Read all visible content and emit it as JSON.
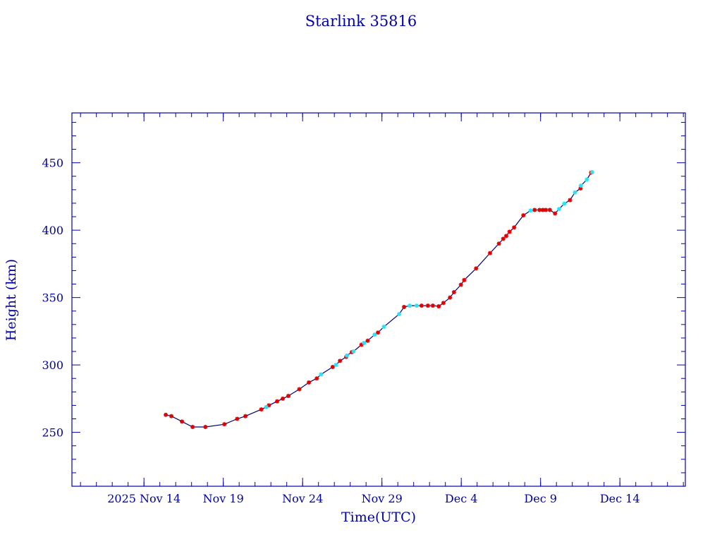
{
  "chart_data": {
    "type": "line",
    "title": "Starlink 35816",
    "xlabel": "Time(UTC)",
    "ylabel": "Height (km)",
    "xlim": [
      "2025-11-09T11:00",
      "2025-12-18T03:00"
    ],
    "ylim": [
      210,
      487
    ],
    "x_ticks": [
      {
        "date": "2025-11-14",
        "label": "2025 Nov 14"
      },
      {
        "date": "2025-11-19",
        "label": "Nov 19"
      },
      {
        "date": "2025-11-24",
        "label": "Nov 24"
      },
      {
        "date": "2025-11-29",
        "label": "Nov 29"
      },
      {
        "date": "2025-12-04",
        "label": "Dec  4"
      },
      {
        "date": "2025-12-09",
        "label": "Dec  9"
      },
      {
        "date": "2025-12-14",
        "label": "Dec 14"
      }
    ],
    "y_ticks": [
      250,
      300,
      350,
      400,
      450
    ],
    "grid": false,
    "colors": {
      "axis": "#0000a8",
      "line": "#000080",
      "marker_red": "#e00000",
      "marker_cyan": "#30e0f0"
    },
    "series": [
      {
        "marker": "red",
        "points": [
          [
            "2025-11-15T09:00",
            263
          ],
          [
            "2025-11-15T17:30",
            262
          ],
          [
            "2025-11-16T09:30",
            258
          ],
          [
            "2025-11-17T01:40",
            254
          ],
          [
            "2025-11-17T21:00",
            254
          ],
          [
            "2025-11-19T01:40",
            256
          ],
          [
            "2025-11-19T21:00",
            260
          ],
          [
            "2025-11-20T09:30",
            262
          ],
          [
            "2025-11-21T09:30",
            267
          ],
          [
            "2025-11-21T21:00",
            270
          ],
          [
            "2025-11-22T09:30",
            273
          ],
          [
            "2025-11-22T18:00",
            275
          ],
          [
            "2025-11-23T02:30",
            277
          ],
          [
            "2025-11-23T19:00",
            282
          ],
          [
            "2025-11-24T09:30",
            287
          ],
          [
            "2025-11-24T21:30",
            290
          ],
          [
            "2025-11-25T21:30",
            298.5
          ],
          [
            "2025-11-26T08:30",
            303
          ],
          [
            "2025-11-26T18:00",
            306
          ],
          [
            "2025-11-27T02:30",
            309.5
          ],
          [
            "2025-11-27T17:00",
            315
          ],
          [
            "2025-11-28T02:30",
            318
          ],
          [
            "2025-11-28T18:00",
            324
          ],
          [
            "2025-11-30T09:30",
            343
          ],
          [
            "2025-12-01T12:00",
            344
          ],
          [
            "2025-12-01T21:30",
            344
          ],
          [
            "2025-12-02T05:00",
            344
          ],
          [
            "2025-12-02T14:00",
            343.5
          ],
          [
            "2025-12-02T21:00",
            346
          ],
          [
            "2025-12-03T07:00",
            350
          ],
          [
            "2025-12-03T13:00",
            354
          ],
          [
            "2025-12-03T23:30",
            359.5
          ],
          [
            "2025-12-04T04:30",
            363
          ],
          [
            "2025-12-04T22:30",
            371.6
          ],
          [
            "2025-12-05T19:30",
            383
          ],
          [
            "2025-12-06T09:00",
            390
          ],
          [
            "2025-12-06T15:30",
            393.6
          ],
          [
            "2025-12-06T20:00",
            395.7
          ],
          [
            "2025-12-07T01:00",
            398.8
          ],
          [
            "2025-12-07T08:00",
            402
          ],
          [
            "2025-12-07T22:00",
            411
          ],
          [
            "2025-12-08T15:00",
            415
          ],
          [
            "2025-12-08T22:30",
            415
          ],
          [
            "2025-12-09T03:30",
            415
          ],
          [
            "2025-12-09T08:00",
            415
          ],
          [
            "2025-12-09T14:00",
            415
          ],
          [
            "2025-12-09T22:00",
            412.4
          ],
          [
            "2025-12-10T20:30",
            422.3
          ],
          [
            "2025-12-11T12:30",
            431
          ],
          [
            "2025-12-12T04:30",
            442.7
          ]
        ]
      },
      {
        "marker": "cyan",
        "points": [
          [
            "2025-11-21T17:00",
            268.7
          ],
          [
            "2025-11-25T03:50",
            293
          ],
          [
            "2025-11-26T02:30",
            300
          ],
          [
            "2025-11-26T19:00",
            307
          ],
          [
            "2025-11-27T05:00",
            310
          ],
          [
            "2025-11-27T21:00",
            316.3
          ],
          [
            "2025-11-28T13:00",
            322.5
          ],
          [
            "2025-11-29T03:00",
            328.3
          ],
          [
            "2025-11-30T02:00",
            337.7
          ],
          [
            "2025-11-30T18:00",
            344
          ],
          [
            "2025-12-01T04:30",
            344
          ],
          [
            "2025-12-08T09:00",
            414.6
          ],
          [
            "2025-12-10T04:00",
            415.7
          ],
          [
            "2025-12-10T12:00",
            419.7
          ],
          [
            "2025-12-11T04:00",
            428
          ],
          [
            "2025-12-11T13:00",
            433
          ],
          [
            "2025-12-11T22:00",
            437.5
          ],
          [
            "2025-12-12T06:00",
            443
          ]
        ]
      }
    ]
  }
}
